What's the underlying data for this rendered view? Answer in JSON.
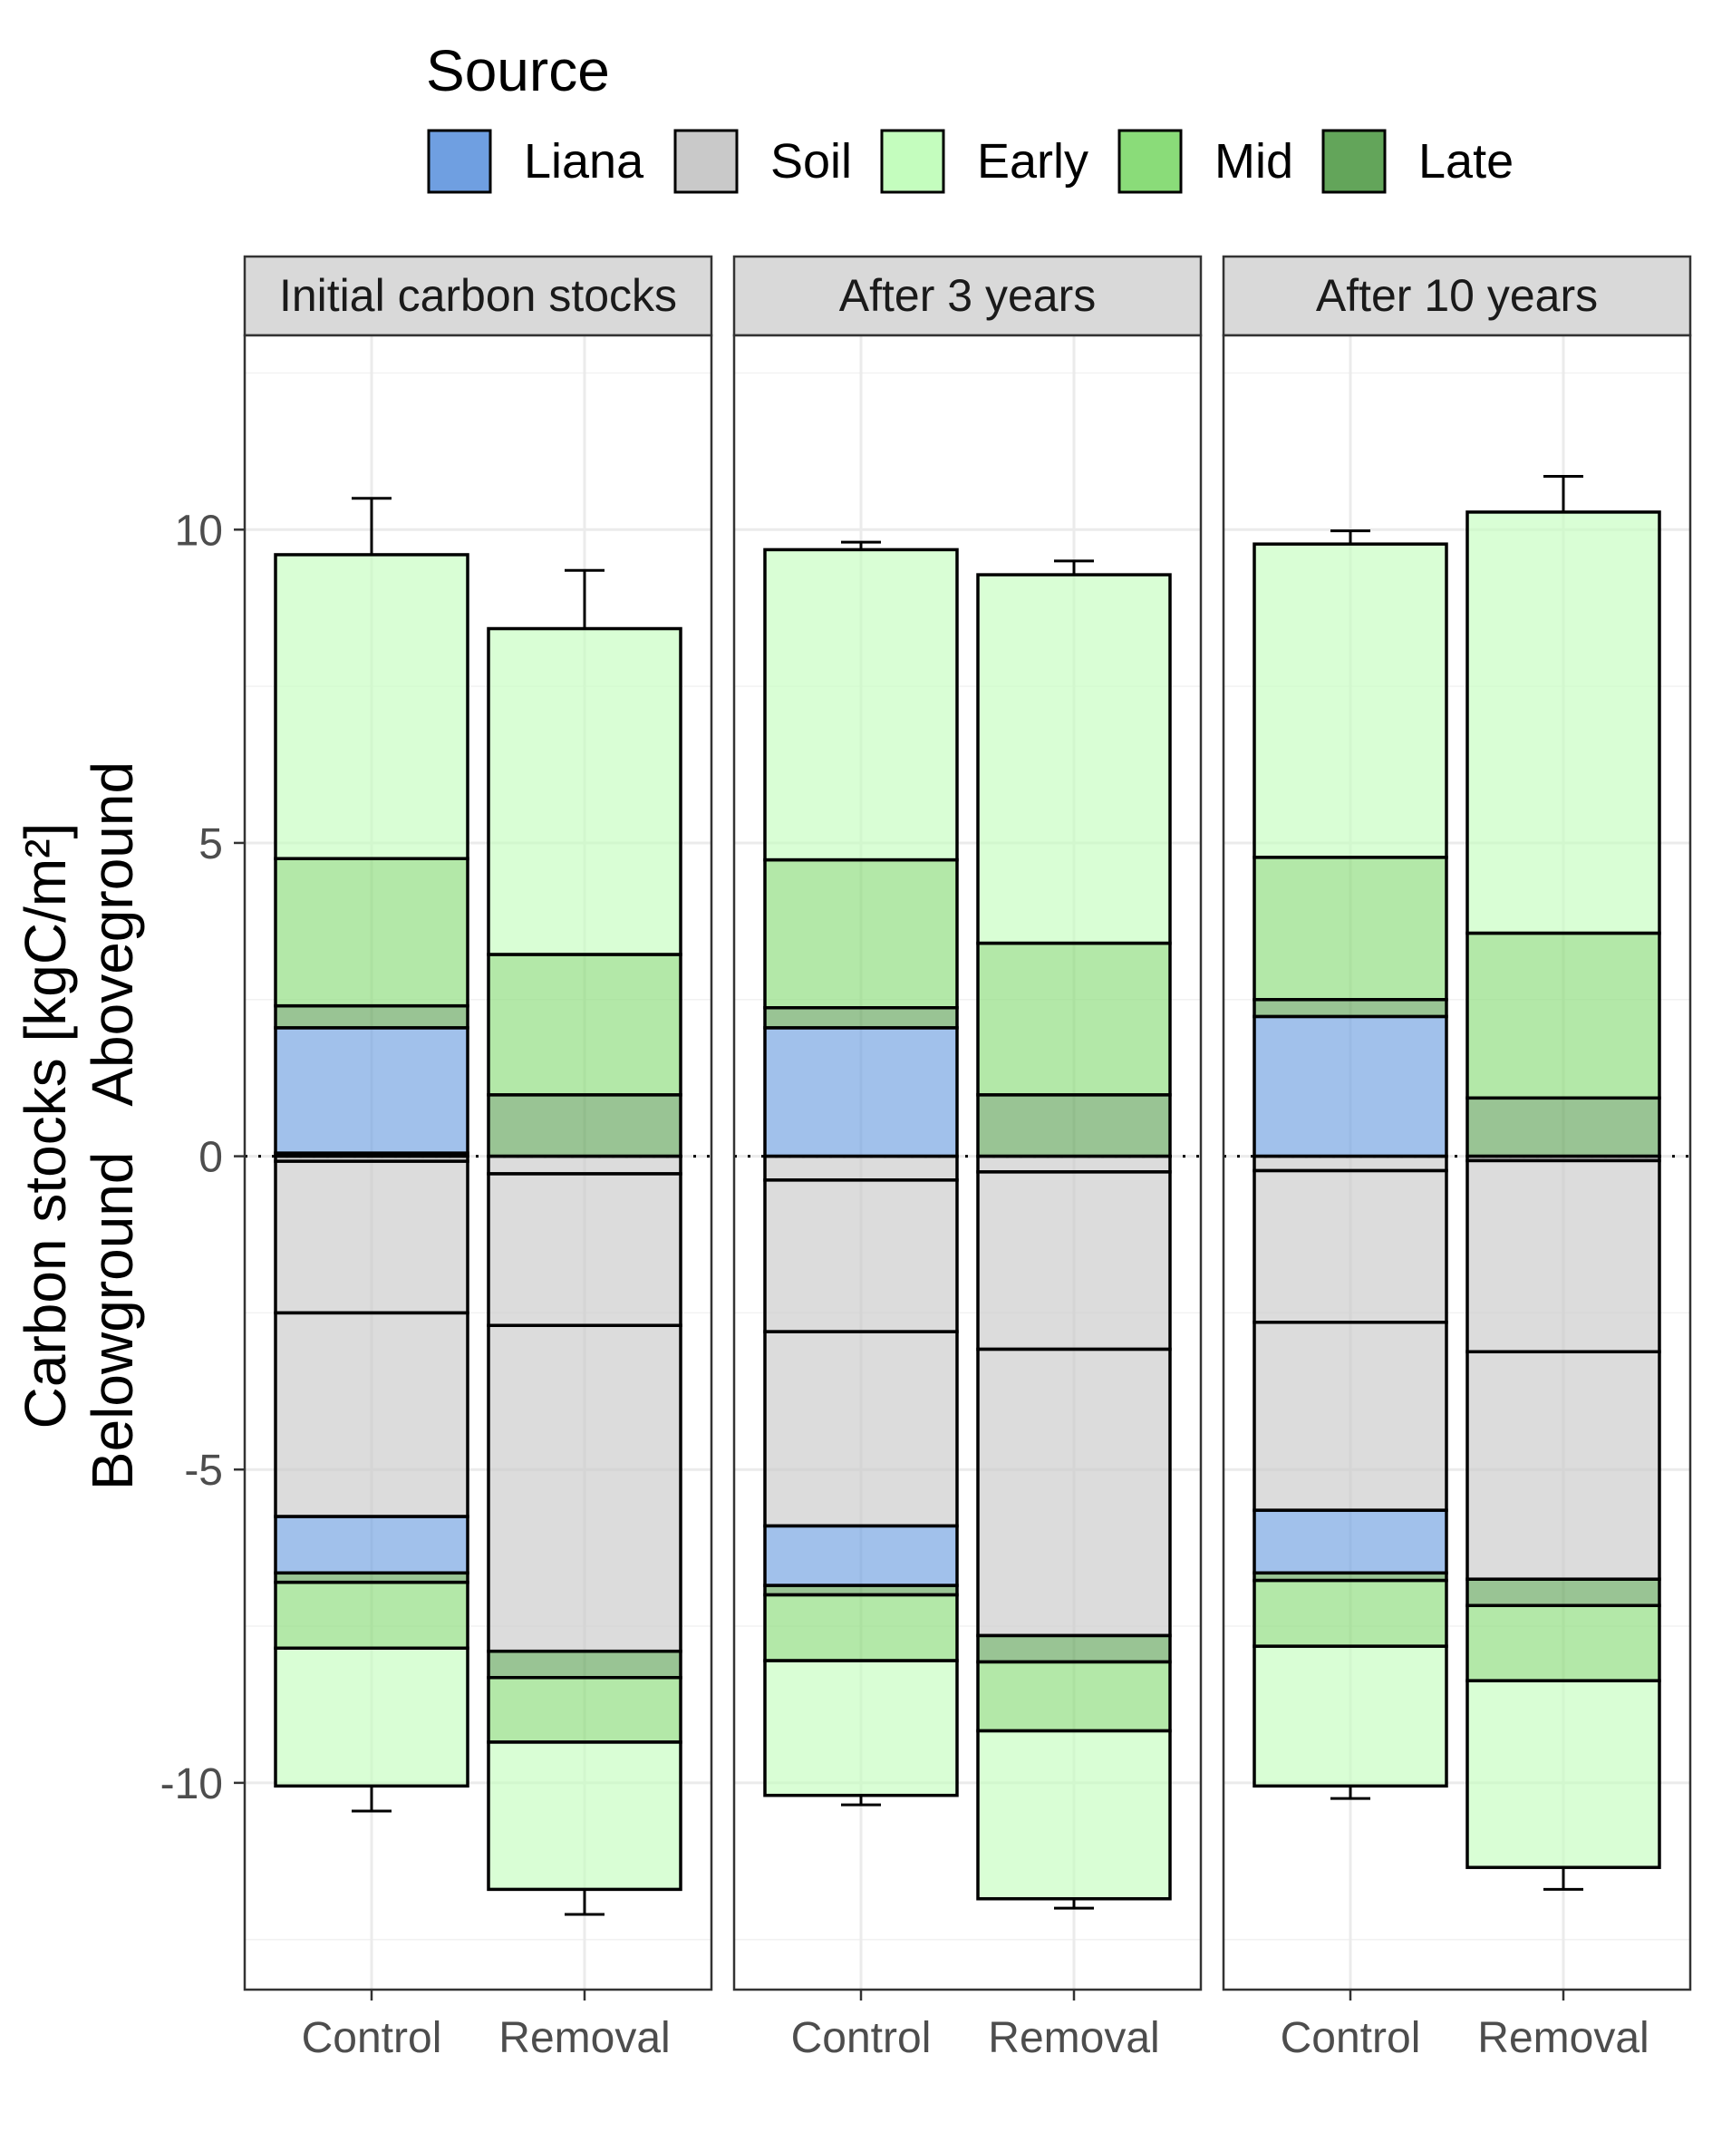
{
  "chart_data": {
    "type": "bar",
    "stacked": true,
    "ylabel_line1": "Carbon stocks [kgC/m²]",
    "ylabel_line2": "Belowground   Aboveground",
    "ylim": [
      -13.3,
      13.1
    ],
    "yticks": [
      -10,
      -5,
      0,
      5,
      10
    ],
    "grid": true,
    "legend": {
      "title": "Source",
      "position": "top",
      "items": [
        {
          "key": "liana",
          "label": "Liana",
          "color": "#6f9fe1"
        },
        {
          "key": "soil",
          "label": "Soil",
          "color": "#c9c9c9"
        },
        {
          "key": "early",
          "label": "Early",
          "color": "#c4fdbe"
        },
        {
          "key": "mid",
          "label": "Mid",
          "color": "#8adc79"
        },
        {
          "key": "late",
          "label": "Late",
          "color": "#63a55a"
        }
      ]
    },
    "categories": [
      "Control",
      "Removal"
    ],
    "panels": [
      {
        "title": "Initial carbon stocks",
        "bars": [
          {
            "category": "Control",
            "above": [
              {
                "source": "soil",
                "value": 0.05
              },
              {
                "source": "liana",
                "value": 2.0
              },
              {
                "source": "late",
                "value": 0.35
              },
              {
                "source": "mid",
                "value": 2.35
              },
              {
                "source": "early",
                "value": 4.85
              }
            ],
            "below": [
              {
                "source": "soil",
                "value": 0.08
              },
              {
                "source": "soil",
                "value": 2.42
              },
              {
                "source": "soil",
                "value": 3.25
              },
              {
                "source": "liana",
                "value": 0.9
              },
              {
                "source": "late",
                "value": 0.15
              },
              {
                "source": "mid",
                "value": 1.05
              },
              {
                "source": "early",
                "value": 2.2
              }
            ],
            "total_above": 9.6,
            "err_above": 10.5,
            "total_below": -10.05,
            "err_below": -10.45
          },
          {
            "category": "Removal",
            "above": [
              {
                "source": "late",
                "value": 0.98
              },
              {
                "source": "mid",
                "value": 2.24
              },
              {
                "source": "early",
                "value": 5.2
              }
            ],
            "below": [
              {
                "source": "soil",
                "value": 0.28
              },
              {
                "source": "soil",
                "value": 2.42
              },
              {
                "source": "soil",
                "value": 5.2
              },
              {
                "source": "late",
                "value": 0.42
              },
              {
                "source": "mid",
                "value": 1.03
              },
              {
                "source": "early",
                "value": 2.35
              }
            ],
            "total_above": 8.42,
            "err_above": 9.35,
            "total_below": -11.7,
            "err_below": -12.1
          }
        ]
      },
      {
        "title": "After 3 years",
        "bars": [
          {
            "category": "Control",
            "above": [
              {
                "source": "liana",
                "value": 2.05
              },
              {
                "source": "late",
                "value": 0.32
              },
              {
                "source": "mid",
                "value": 2.36
              },
              {
                "source": "early",
                "value": 4.95
              }
            ],
            "below": [
              {
                "source": "soil",
                "value": 0.38
              },
              {
                "source": "soil",
                "value": 2.42
              },
              {
                "source": "soil",
                "value": 3.1
              },
              {
                "source": "liana",
                "value": 0.95
              },
              {
                "source": "late",
                "value": 0.15
              },
              {
                "source": "mid",
                "value": 1.05
              },
              {
                "source": "early",
                "value": 2.15
              }
            ],
            "total_above": 9.68,
            "err_above": 9.8,
            "total_below": -10.2,
            "err_below": -10.35
          },
          {
            "category": "Removal",
            "above": [
              {
                "source": "late",
                "value": 0.98
              },
              {
                "source": "mid",
                "value": 2.42
              },
              {
                "source": "early",
                "value": 5.88
              }
            ],
            "below": [
              {
                "source": "soil",
                "value": 0.25
              },
              {
                "source": "soil",
                "value": 2.83
              },
              {
                "source": "soil",
                "value": 4.57
              },
              {
                "source": "late",
                "value": 0.42
              },
              {
                "source": "mid",
                "value": 1.1
              },
              {
                "source": "early",
                "value": 2.68
              }
            ],
            "total_above": 9.28,
            "err_above": 9.5,
            "total_below": -11.85,
            "err_below": -12.0
          }
        ]
      },
      {
        "title": "After 10 years",
        "bars": [
          {
            "category": "Control",
            "above": [
              {
                "source": "liana",
                "value": 2.23
              },
              {
                "source": "late",
                "value": 0.27
              },
              {
                "source": "mid",
                "value": 2.27
              },
              {
                "source": "early",
                "value": 5.0
              }
            ],
            "below": [
              {
                "source": "soil",
                "value": 0.23
              },
              {
                "source": "soil",
                "value": 2.42
              },
              {
                "source": "soil",
                "value": 3.0
              },
              {
                "source": "liana",
                "value": 1.0
              },
              {
                "source": "late",
                "value": 0.12
              },
              {
                "source": "mid",
                "value": 1.05
              },
              {
                "source": "early",
                "value": 2.23
              }
            ],
            "total_above": 9.77,
            "err_above": 9.98,
            "total_below": -10.05,
            "err_below": -10.25
          },
          {
            "category": "Removal",
            "above": [
              {
                "source": "late",
                "value": 0.93
              },
              {
                "source": "mid",
                "value": 2.63
              },
              {
                "source": "early",
                "value": 6.72
              }
            ],
            "below": [
              {
                "source": "soil",
                "value": 0.07
              },
              {
                "source": "soil",
                "value": 3.05
              },
              {
                "source": "soil",
                "value": 3.63
              },
              {
                "source": "late",
                "value": 0.42
              },
              {
                "source": "mid",
                "value": 1.2
              },
              {
                "source": "early",
                "value": 2.98
              }
            ],
            "total_above": 10.28,
            "err_above": 10.85,
            "total_below": -11.35,
            "err_below": -11.7
          }
        ]
      }
    ]
  }
}
